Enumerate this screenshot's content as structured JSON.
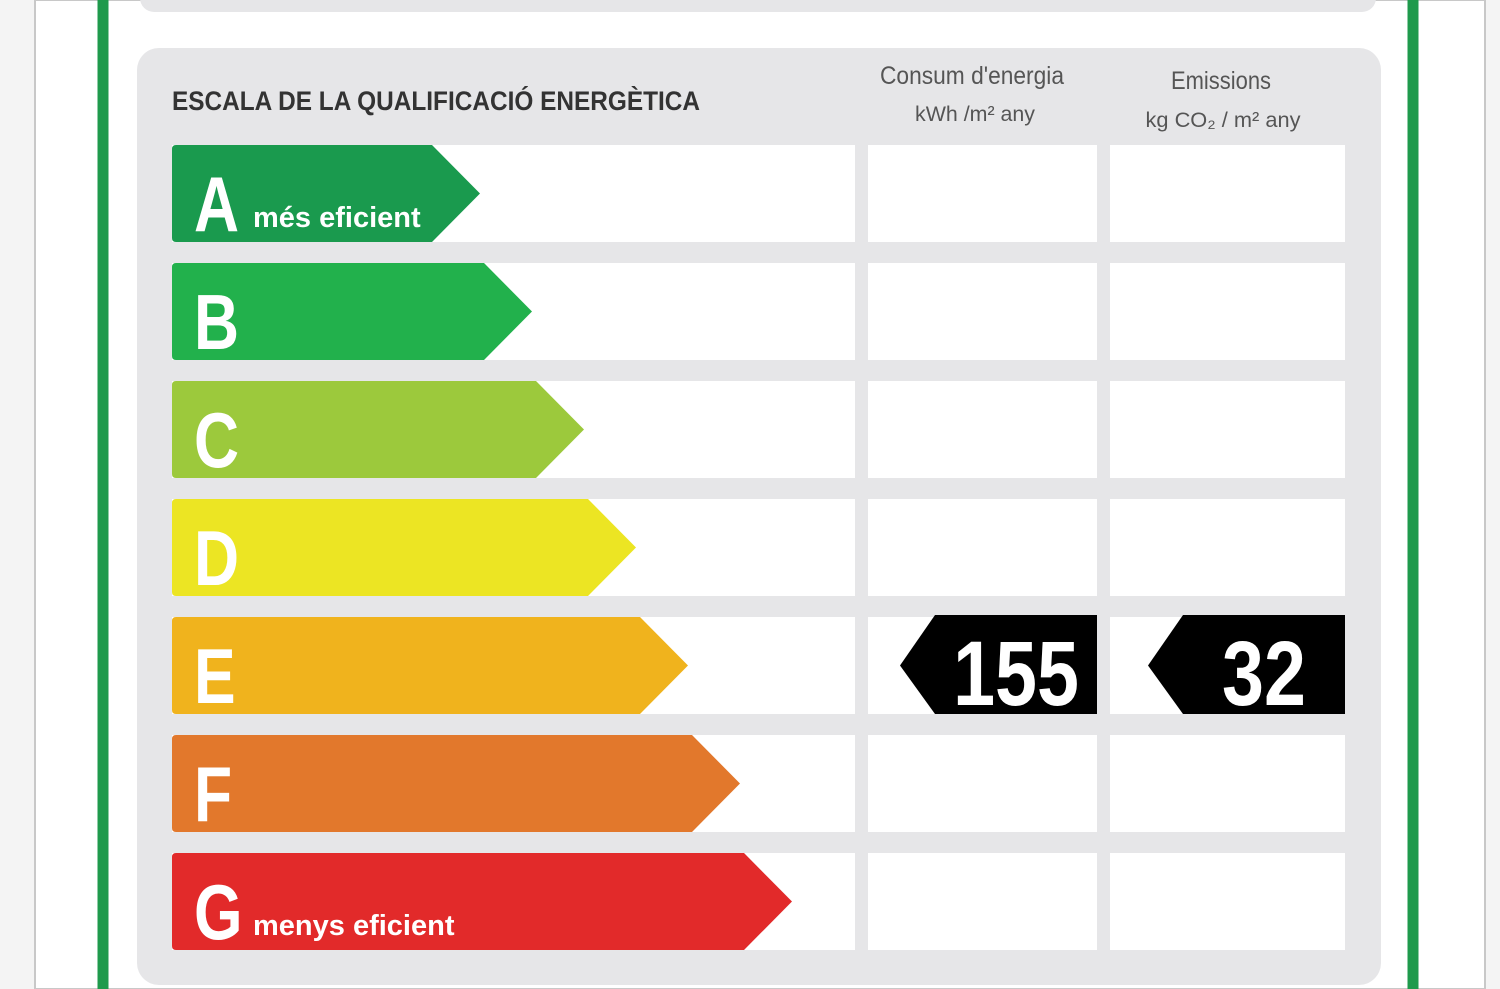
{
  "header": {
    "title": "ESCALA DE LA QUALIFICACIÓ ENERGÈTICA",
    "consumption_title": "Consum d'energia",
    "consumption_unit": "kWh /m² any",
    "emissions_title": "Emissions",
    "emissions_unit": "kg CO₂ / m² any"
  },
  "ratings": [
    {
      "letter": "A",
      "note": "més eficient",
      "color": "#1a9a4e"
    },
    {
      "letter": "B",
      "color": "#22b14c"
    },
    {
      "letter": "C",
      "color": "#9cc93c"
    },
    {
      "letter": "D",
      "color": "#ece523"
    },
    {
      "letter": "E",
      "color": "#f0b31d",
      "consumption": 155,
      "emissions": 32
    },
    {
      "letter": "F",
      "color": "#e2782c"
    },
    {
      "letter": "G",
      "note": "menys eficient",
      "color": "#e22a2a"
    }
  ]
}
